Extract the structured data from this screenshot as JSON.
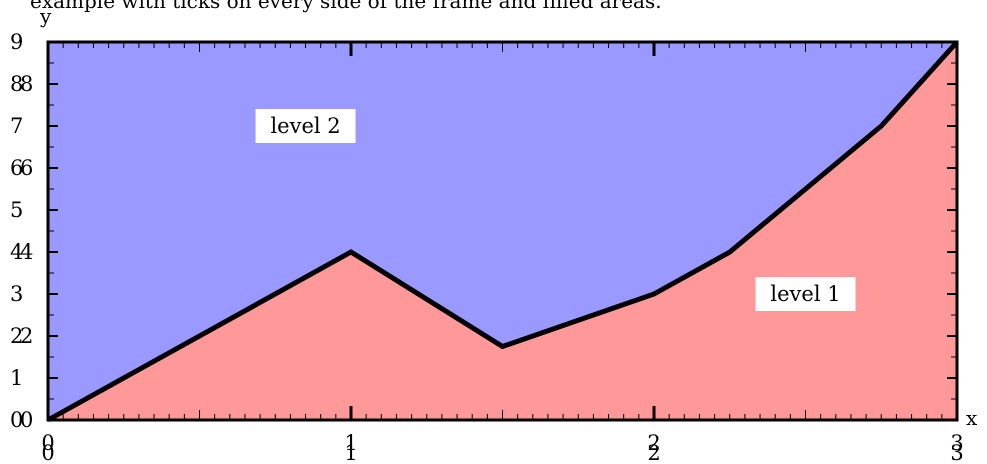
{
  "chart_data": {
    "type": "area",
    "title": "example with ticks on every side of the frame and filled areas.",
    "xlabel": "x",
    "ylabel": "y",
    "xlim": [
      0,
      3
    ],
    "ylim": [
      0,
      9
    ],
    "x": [
      0,
      1,
      1.5,
      2,
      2.25,
      2.75,
      3
    ],
    "series": [
      {
        "values": [
          0,
          4,
          1.75,
          3,
          4,
          7,
          9
        ],
        "color": "#ff9999"
      }
    ],
    "upper_region_color": "#9999ff",
    "line_color": "#000000",
    "annotations": [
      {
        "text": "level 2",
        "x": 0.85,
        "y": 7.0
      },
      {
        "text": "level 1",
        "x": 2.5,
        "y": 3.0
      }
    ],
    "x_ticks": {
      "bottom_labels": [
        "0",
        "1",
        "2",
        "3"
      ],
      "overlay_labels": [
        "0",
        "1",
        "2",
        "3"
      ]
    },
    "y_ticks": {
      "major": [
        "0",
        "1",
        "2",
        "3",
        "4",
        "5",
        "6",
        "7",
        "8",
        "9"
      ],
      "overlay_labels": [
        "0",
        "2",
        "4",
        "6",
        "8"
      ]
    },
    "grid": false,
    "legend": "none"
  }
}
